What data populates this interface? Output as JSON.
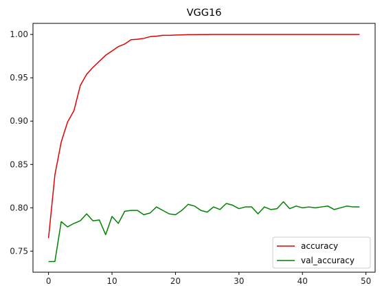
{
  "chart_data": {
    "type": "line",
    "title": "VGG16",
    "xlabel": "",
    "ylabel": "",
    "xlim": [
      -2.45,
      51.45
    ],
    "ylim": [
      0.7257,
      1.0128
    ],
    "xticks": [
      0,
      10,
      20,
      30,
      40,
      50
    ],
    "yticks": [
      0.75,
      0.8,
      0.85,
      0.9,
      0.95,
      1.0
    ],
    "ytick_labels": [
      "0.75",
      "0.80",
      "0.85",
      "0.90",
      "0.95",
      "1.00"
    ],
    "xtick_labels": [
      "0",
      "10",
      "20",
      "30",
      "40",
      "50"
    ],
    "grid": false,
    "legend_position": "lower-right",
    "x": [
      0,
      1,
      2,
      3,
      4,
      5,
      6,
      7,
      8,
      9,
      10,
      11,
      12,
      13,
      14,
      15,
      16,
      17,
      18,
      19,
      20,
      21,
      22,
      23,
      24,
      25,
      26,
      27,
      28,
      29,
      30,
      31,
      32,
      33,
      34,
      35,
      36,
      37,
      38,
      39,
      40,
      41,
      42,
      43,
      44,
      45,
      46,
      47,
      48,
      49
    ],
    "series": [
      {
        "name": "accuracy",
        "color": "#e00000",
        "values": [
          0.765,
          0.838,
          0.876,
          0.899,
          0.912,
          0.941,
          0.954,
          0.962,
          0.969,
          0.976,
          0.981,
          0.986,
          0.989,
          0.994,
          0.9945,
          0.9955,
          0.9975,
          0.998,
          0.999,
          0.999,
          0.9993,
          0.9995,
          0.9998,
          0.9998,
          0.9999,
          0.9999,
          1.0,
          1.0,
          1.0,
          1.0,
          1.0,
          1.0,
          1.0,
          1.0,
          1.0,
          1.0,
          1.0,
          1.0,
          1.0,
          1.0,
          1.0,
          1.0,
          1.0,
          1.0,
          1.0,
          1.0,
          1.0,
          1.0,
          1.0,
          1.0
        ]
      },
      {
        "name": "val_accuracy",
        "color": "#008000",
        "values": [
          0.738,
          0.738,
          0.784,
          0.778,
          0.782,
          0.785,
          0.793,
          0.785,
          0.786,
          0.769,
          0.79,
          0.782,
          0.796,
          0.797,
          0.797,
          0.792,
          0.794,
          0.801,
          0.797,
          0.793,
          0.792,
          0.797,
          0.804,
          0.802,
          0.797,
          0.795,
          0.801,
          0.798,
          0.805,
          0.803,
          0.799,
          0.801,
          0.801,
          0.793,
          0.801,
          0.798,
          0.799,
          0.807,
          0.799,
          0.802,
          0.8,
          0.801,
          0.8,
          0.801,
          0.802,
          0.798,
          0.8,
          0.802,
          0.801,
          0.801
        ]
      }
    ]
  }
}
